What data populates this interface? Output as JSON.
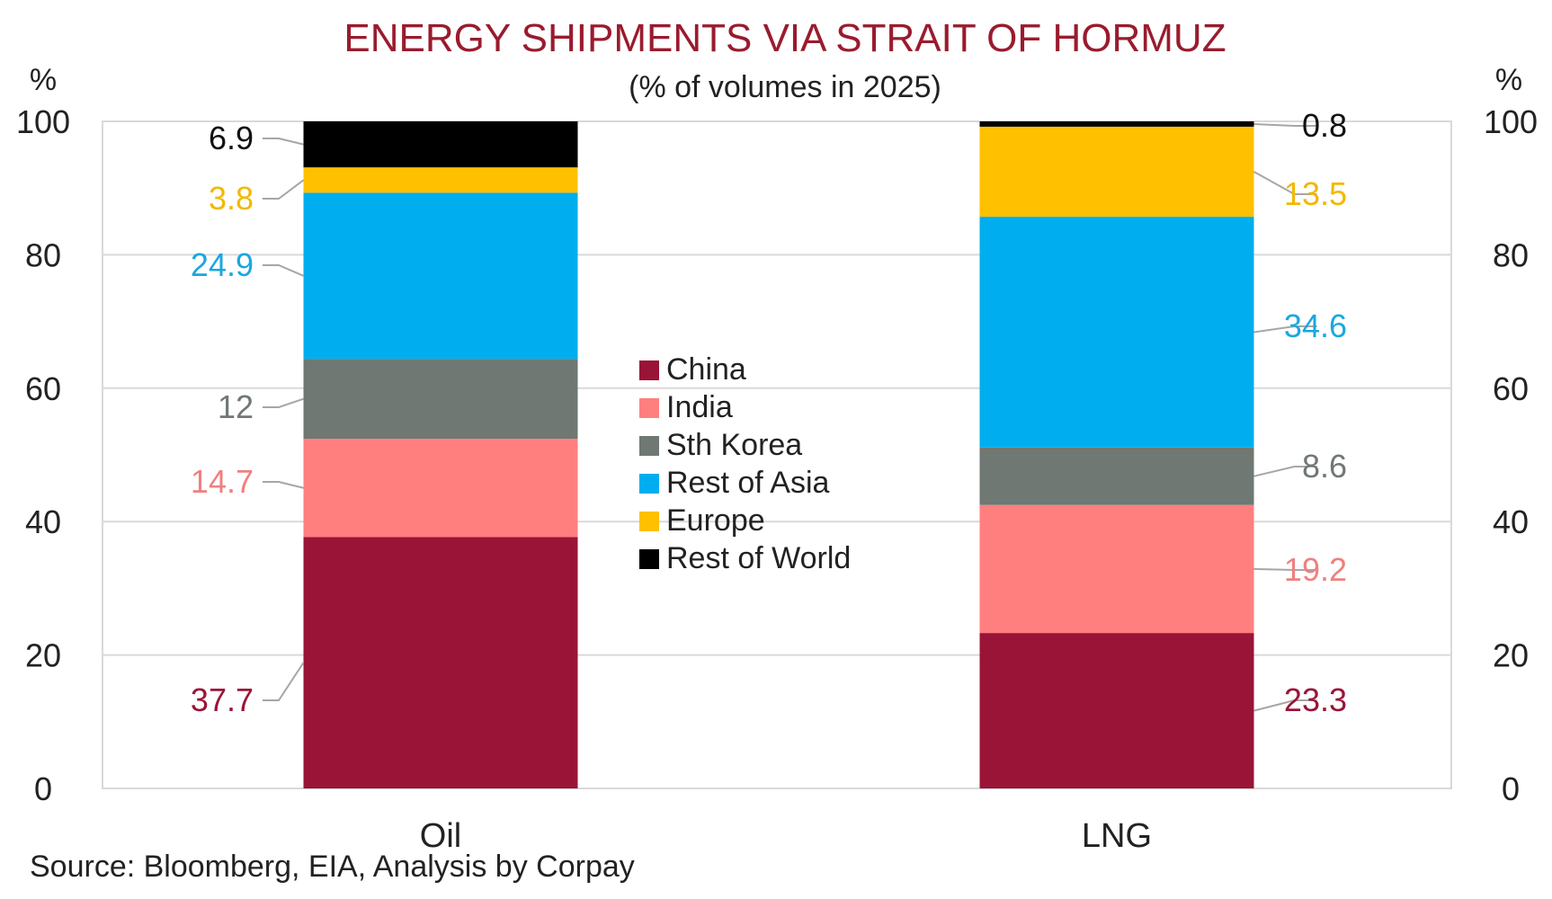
{
  "chart_data": {
    "type": "bar",
    "stacked": true,
    "title": "ENERGY SHIPMENTS VIA STRAIT OF HORMUZ",
    "subtitle": "(% of volumes in 2025)",
    "ylabel_left": "%",
    "ylabel_right": "%",
    "ylim": [
      0,
      100
    ],
    "yticks": [
      "0",
      "20",
      "40",
      "60",
      "80",
      "100"
    ],
    "categories": [
      "Oil",
      "LNG"
    ],
    "series": [
      {
        "name": "China",
        "color": "#9a1437",
        "values": [
          37.7,
          23.3
        ],
        "labels": [
          "37.7",
          "23.3"
        ]
      },
      {
        "name": "India",
        "color": "#ff7f7f",
        "values": [
          14.7,
          19.2
        ],
        "labels": [
          "14.7",
          "19.2"
        ]
      },
      {
        "name": "Sth Korea",
        "color": "#6f7872",
        "values": [
          12,
          8.6
        ],
        "labels": [
          "12",
          "8.6"
        ]
      },
      {
        "name": "Rest of Asia",
        "color": "#00aeef",
        "values": [
          24.9,
          34.6
        ],
        "labels": [
          "24.9",
          "34.6"
        ]
      },
      {
        "name": "Europe",
        "color": "#ffc000",
        "values": [
          3.8,
          13.5
        ],
        "labels": [
          "3.8",
          "13.5"
        ]
      },
      {
        "name": "Rest of World",
        "color": "#000000",
        "values": [
          6.9,
          0.8
        ],
        "labels": [
          "6.9",
          "0.8"
        ]
      }
    ],
    "legend_position": "center",
    "grid": true,
    "source": "Source: Bloomberg, EIA, Analysis by Corpay"
  },
  "label_colors": {
    "China": "#9a1437",
    "India": "#f08080",
    "Sth Korea": "#6f7872",
    "Rest of Asia": "#1aa7e0",
    "Europe": "#f2b800",
    "Rest of World": "#111111"
  }
}
